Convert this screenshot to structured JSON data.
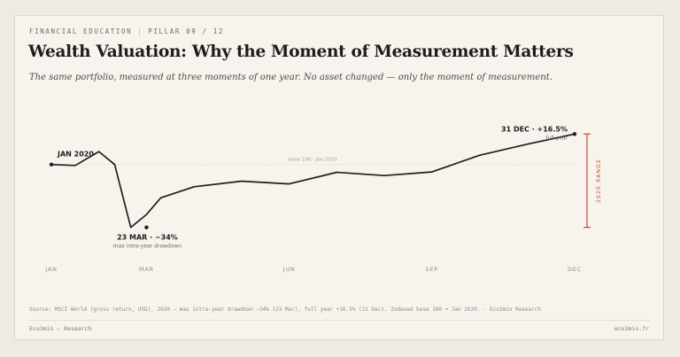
{
  "header": {
    "kicker_series": "FINANCIAL EDUCATION",
    "kicker_sep": "|",
    "kicker_pillar": "PILLAR 09 / 12",
    "title": "Wealth Valuation: Why the Moment of Measurement Matters",
    "subtitle": "The same portfolio, measured at three moments of one year. No asset changed — only the moment of measurement."
  },
  "chart_data": {
    "type": "line",
    "series": [
      {
        "x": [
          0,
          0.5,
          1,
          1.33,
          1.67,
          2,
          2.3,
          3,
          4,
          5,
          6,
          7,
          8,
          9,
          10,
          11
        ],
        "values": [
          100,
          99.5,
          107,
          100,
          66,
          73,
          82,
          88,
          91,
          89.5,
          95.8,
          94,
          96,
          105,
          111,
          116.5
        ]
      }
    ],
    "xlim": [
      0,
      11
    ],
    "ylim": [
      62,
      120
    ],
    "x_ticks": [
      {
        "x": 0,
        "label": "JAN"
      },
      {
        "x": 2,
        "label": "MAR"
      },
      {
        "x": 5,
        "label": "JUN"
      },
      {
        "x": 8,
        "label": "SEP"
      },
      {
        "x": 11,
        "label": "DEC"
      }
    ],
    "baseline": {
      "y": 100,
      "label": "base 100 · Jan 2020"
    },
    "annotations": [
      {
        "x": 0,
        "y": 100,
        "label": "JAN 2020",
        "sub": ""
      },
      {
        "x": 2,
        "y": 66,
        "label": "23 MAR · −34%",
        "sub": "max intra-year drawdown"
      },
      {
        "x": 11,
        "y": 116.5,
        "label": "31 DEC · +16.5%",
        "sub": "full year"
      }
    ],
    "range_bar": {
      "y_min": 66,
      "y_max": 116.5,
      "label": "2020 RANGE"
    },
    "line_color": "#1f1f1f",
    "accent_color": "#c9492c",
    "grid": false
  },
  "source": "Source: MSCI World (gross return, USD), 2020 — max intra-year drawdown −34% (23 Mar), full year +16.5% (31 Dec). Indexed base 100 = Jan 2020. · Eco3min Research",
  "footer": {
    "left": "Eco3min — Research",
    "right": "eco3min.fr"
  }
}
